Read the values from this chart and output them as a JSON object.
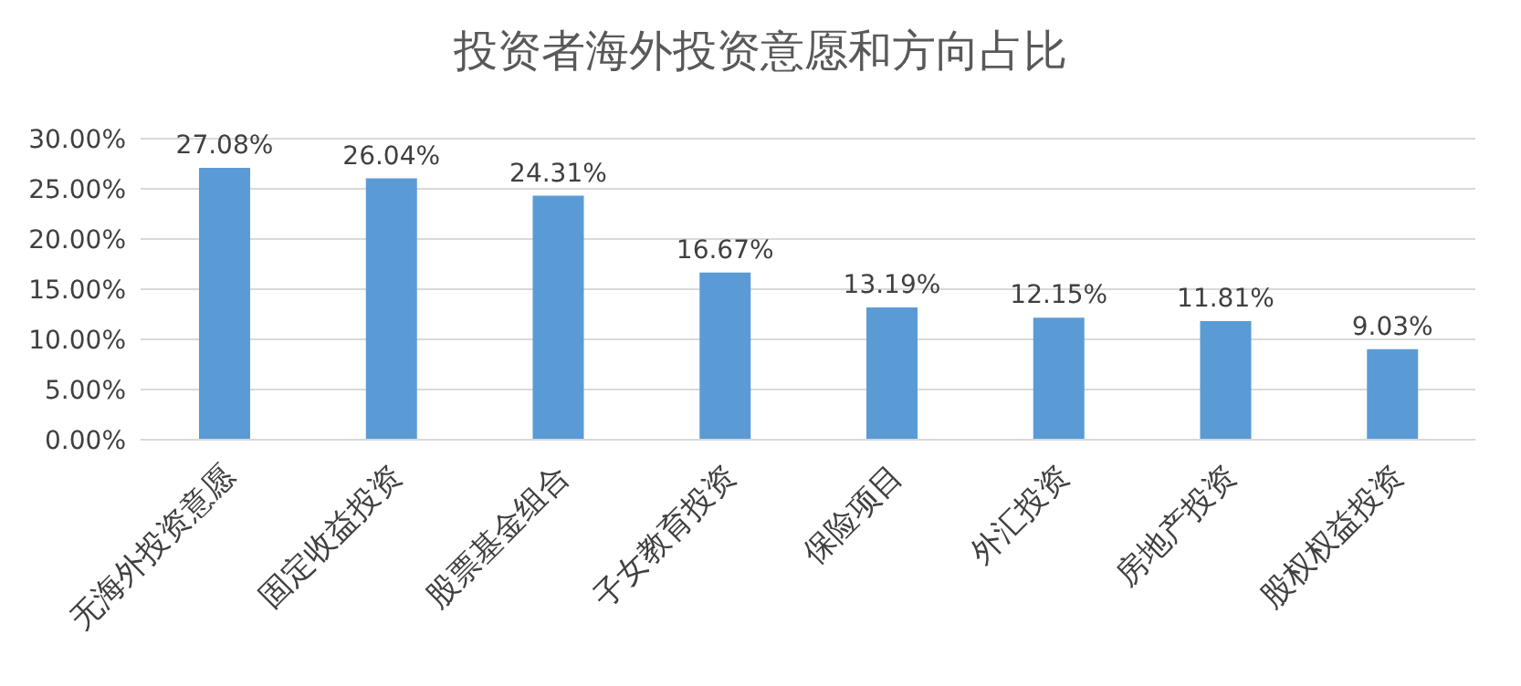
{
  "chart_data": {
    "type": "bar",
    "title": "投资者海外投资意愿和方向占比",
    "categories": [
      "无海外投资意愿",
      "固定收益投资",
      "股票基金组合",
      "子女教育投资",
      "保险项目",
      "外汇投资",
      "房地产投资",
      "股权权益投资"
    ],
    "values": [
      27.08,
      26.04,
      24.31,
      16.67,
      13.19,
      12.15,
      11.81,
      9.03
    ],
    "value_labels": [
      "27.08%",
      "26.04%",
      "24.31%",
      "16.67%",
      "13.19%",
      "12.15%",
      "11.81%",
      "9.03%"
    ],
    "color": "#5b9bd5",
    "ylim": [
      0,
      30
    ],
    "yticks": [
      {
        "value": 0,
        "label": "0.00%"
      },
      {
        "value": 5,
        "label": "5.00%"
      },
      {
        "value": 10,
        "label": "10.00%"
      },
      {
        "value": 15,
        "label": "15.00%"
      },
      {
        "value": 20,
        "label": "20.00%"
      },
      {
        "value": 25,
        "label": "25.00%"
      },
      {
        "value": 30,
        "label": "30.00%"
      }
    ],
    "grid": "y"
  }
}
